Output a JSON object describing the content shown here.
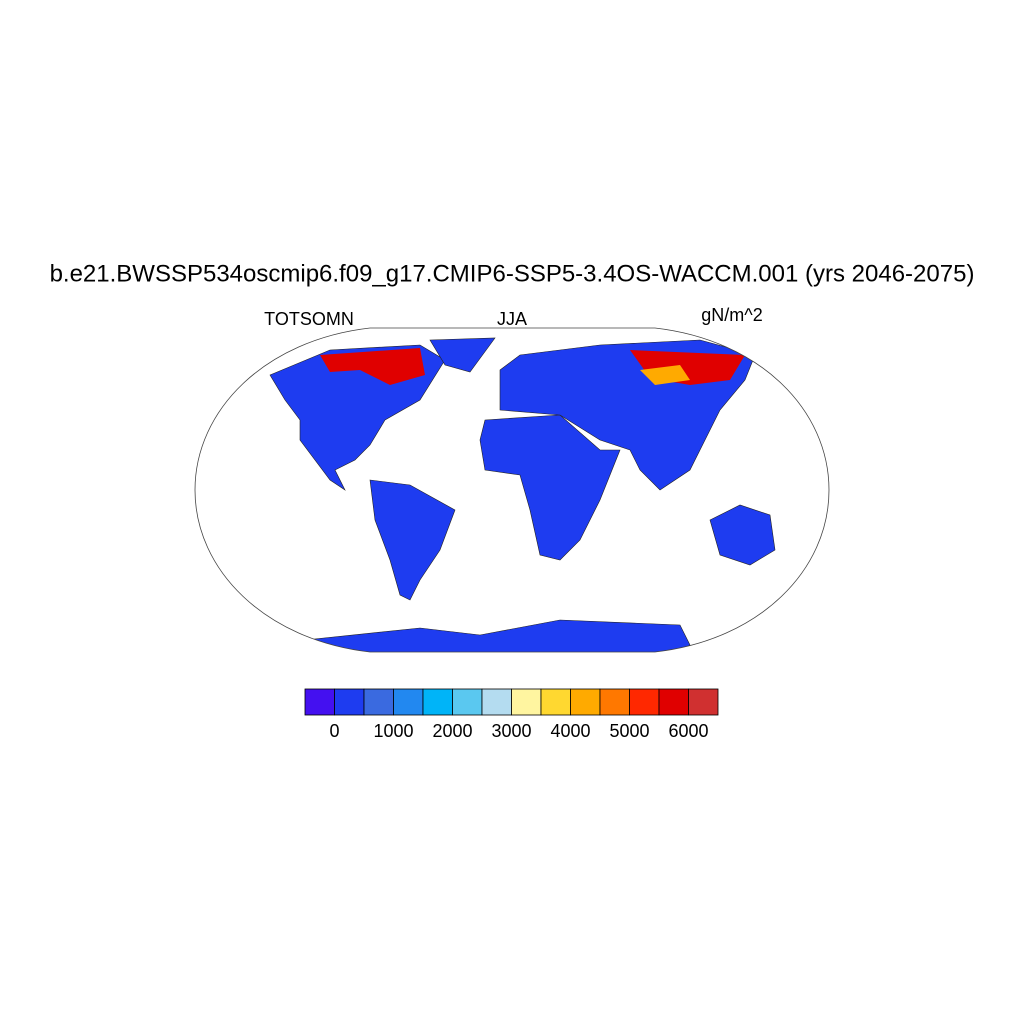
{
  "chart_data": {
    "type": "map",
    "title": "b.e21.BWSSP534oscmip6.f09_g17.CMIP6-SSP5-3.4OS-WACCM.001 (yrs 2046-2075)",
    "left_label": "TOTSOMN",
    "center_label": "JJA",
    "right_label": "gN/m^2",
    "colorbar": {
      "colors": [
        "#4410f0",
        "#1e3cf0",
        "#3a6ae0",
        "#2288f0",
        "#00b4f8",
        "#5ac8f0",
        "#b4dcf0",
        "#fff5a0",
        "#ffd830",
        "#ffaa00",
        "#ff7800",
        "#ff2800",
        "#e00000",
        "#d03030"
      ],
      "xlim": [
        -500,
        6500
      ],
      "xticks": [
        0,
        1000,
        2000,
        3000,
        4000,
        5000,
        6000
      ]
    }
  }
}
